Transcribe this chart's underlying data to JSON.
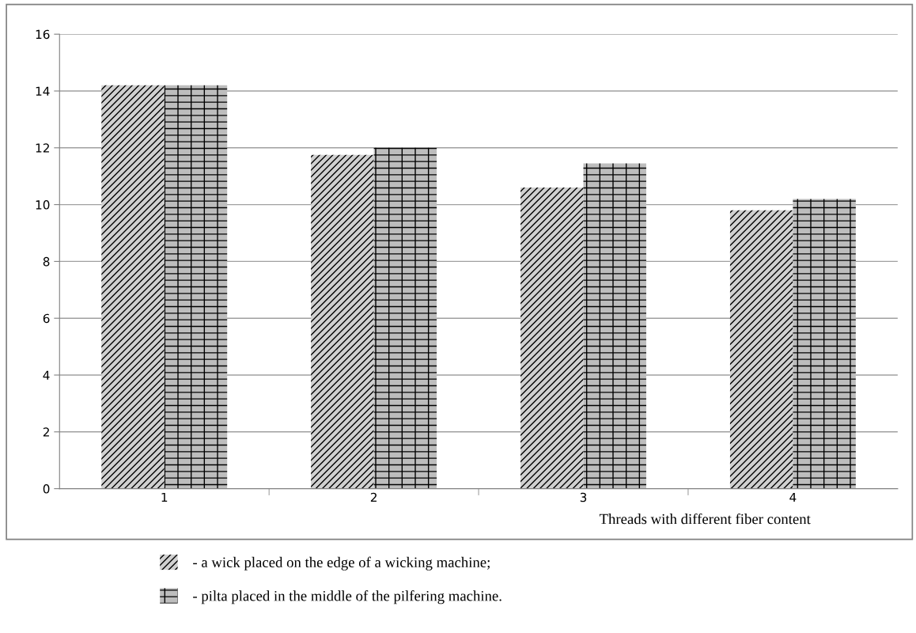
{
  "chart_data": {
    "type": "bar",
    "xlabel": "Threads with different fiber content",
    "categories": [
      "1",
      "2",
      "3",
      "4"
    ],
    "series": [
      {
        "name": "- a wick placed on the edge of a wicking machine;",
        "color": "#d0d0d0",
        "values": [
          14.2,
          11.75,
          10.6,
          9.8
        ]
      },
      {
        "name": "- pilta placed in the middle of the pilfering machine.",
        "color": "#bdbdbd",
        "values": [
          14.2,
          12.0,
          11.45,
          10.2
        ]
      }
    ],
    "ylim": [
      0,
      16
    ],
    "yticks": [
      0,
      2,
      4,
      6,
      8,
      10,
      12,
      14,
      16
    ],
    "grid": "y",
    "legend": "bottom"
  }
}
